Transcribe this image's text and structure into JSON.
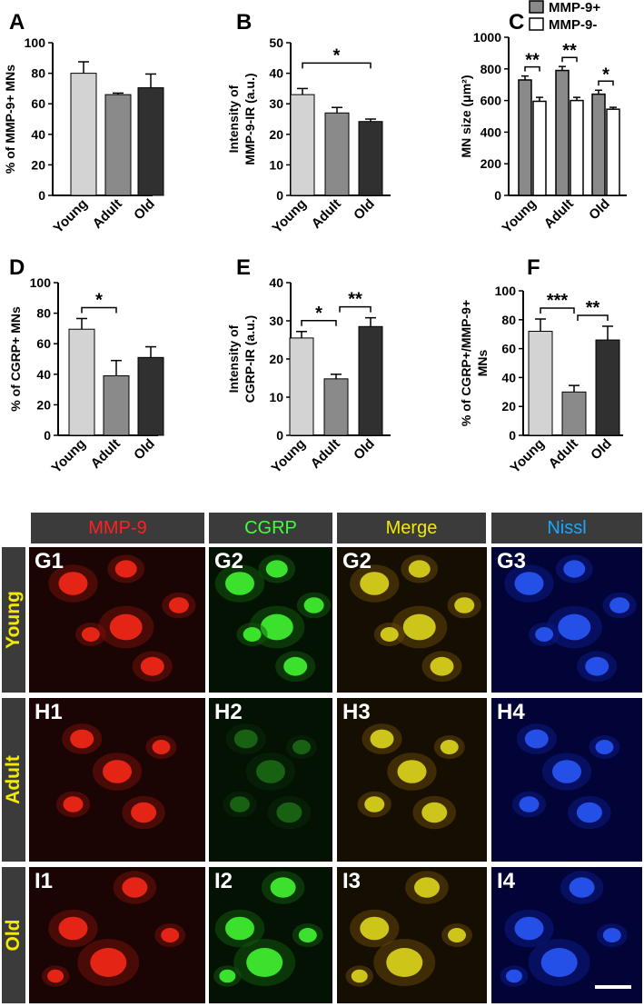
{
  "chart_data": [
    {
      "panel": "A",
      "type": "bar",
      "categories": [
        "Young",
        "Adult",
        "Old"
      ],
      "values": [
        80,
        66,
        70.5
      ],
      "errors": [
        7.5,
        1,
        9
      ],
      "colors": [
        "#d3d3d3",
        "#8a8a8a",
        "#303030"
      ],
      "ylabel": "% of MMP-9+ MNs",
      "ylim": [
        0,
        100
      ],
      "yticks": [
        "0",
        "20",
        "40",
        "60",
        "80",
        "100"
      ],
      "significance": []
    },
    {
      "panel": "B",
      "type": "bar",
      "categories": [
        "Young",
        "Adult",
        "Old"
      ],
      "values": [
        33,
        27,
        24.2
      ],
      "errors": [
        2,
        1.8,
        0.8
      ],
      "colors": [
        "#d3d3d3",
        "#8a8a8a",
        "#303030"
      ],
      "ylabel": [
        "Intensity of",
        "MMP-9-IR (a.u.)"
      ],
      "ylim": [
        0,
        50
      ],
      "yticks": [
        "0",
        "10",
        "20",
        "30",
        "40",
        "50"
      ],
      "significance": [
        {
          "from": 0,
          "to": 2,
          "label": "*"
        }
      ]
    },
    {
      "panel": "C",
      "type": "grouped-bar",
      "categories": [
        "Young",
        "Adult",
        "Old"
      ],
      "series": [
        {
          "name": "MMP-9+",
          "values": [
            730,
            790,
            640
          ],
          "errors": [
            25,
            25,
            25
          ],
          "color": "#8a8a8a"
        },
        {
          "name": "MMP-9-",
          "values": [
            595,
            600,
            545
          ],
          "errors": [
            25,
            20,
            12
          ],
          "color": "#ffffff"
        }
      ],
      "ylabel": "MN size (μm²)",
      "ylim": [
        0,
        1000
      ],
      "yticks": [
        "0",
        "200",
        "400",
        "600",
        "800",
        "1000"
      ],
      "significance": [
        {
          "category": 0,
          "label": "**"
        },
        {
          "category": 1,
          "label": "**"
        },
        {
          "category": 2,
          "label": "*"
        }
      ],
      "legend": "top"
    },
    {
      "panel": "D",
      "type": "bar",
      "categories": [
        "Young",
        "Adult",
        "Old"
      ],
      "values": [
        69.5,
        39,
        51
      ],
      "errors": [
        7,
        10,
        7
      ],
      "colors": [
        "#d3d3d3",
        "#8a8a8a",
        "#303030"
      ],
      "ylabel": "% of CGRP+ MNs",
      "ylim": [
        0,
        100
      ],
      "yticks": [
        "0",
        "20",
        "40",
        "60",
        "80",
        "100"
      ],
      "significance": [
        {
          "from": 0,
          "to": 1,
          "label": "*"
        }
      ]
    },
    {
      "panel": "E",
      "type": "bar",
      "categories": [
        "Young",
        "Adult",
        "Old"
      ],
      "values": [
        25.5,
        14.8,
        28.5
      ],
      "errors": [
        1.7,
        1.2,
        2.3
      ],
      "colors": [
        "#d3d3d3",
        "#8a8a8a",
        "#303030"
      ],
      "ylabel": [
        "Intensity of",
        "CGRP-IR (a.u.)"
      ],
      "ylim": [
        0,
        40
      ],
      "yticks": [
        "0",
        "10",
        "20",
        "30",
        "40"
      ],
      "significance": [
        {
          "from": 0,
          "to": 1,
          "label": "*"
        },
        {
          "from": 1,
          "to": 2,
          "label": "**"
        }
      ]
    },
    {
      "panel": "F",
      "type": "bar",
      "categories": [
        "Young",
        "Adult",
        "Old"
      ],
      "values": [
        72,
        30,
        66
      ],
      "errors": [
        8.5,
        4.5,
        9.5
      ],
      "colors": [
        "#d3d3d3",
        "#8a8a8a",
        "#303030"
      ],
      "ylabel": [
        "% of CGRP+/MMP-9+",
        "MNs"
      ],
      "ylim": [
        0,
        100
      ],
      "yticks": [
        "0",
        "20",
        "40",
        "60",
        "80",
        "100"
      ],
      "significance": [
        {
          "from": 0,
          "to": 1,
          "label": "***"
        },
        {
          "from": 1,
          "to": 2,
          "label": "**"
        }
      ]
    }
  ],
  "micrographs": {
    "columns": [
      {
        "label": "MMP-9",
        "color": "#ff2020"
      },
      {
        "label": "CGRP",
        "color": "#3dff3d"
      },
      {
        "label": "Merge",
        "color": "#f4ea00"
      },
      {
        "label": "Nissl",
        "color": "#19a8ff"
      }
    ],
    "rows": [
      {
        "label": "Young",
        "panels": [
          "G1",
          "G2",
          "G2",
          "G3"
        ]
      },
      {
        "label": "Adult",
        "panels": [
          "H1",
          "H2",
          "H3",
          "H4"
        ]
      },
      {
        "label": "Old",
        "panels": [
          "I1",
          "I2",
          "I3",
          "I4"
        ]
      }
    ]
  }
}
